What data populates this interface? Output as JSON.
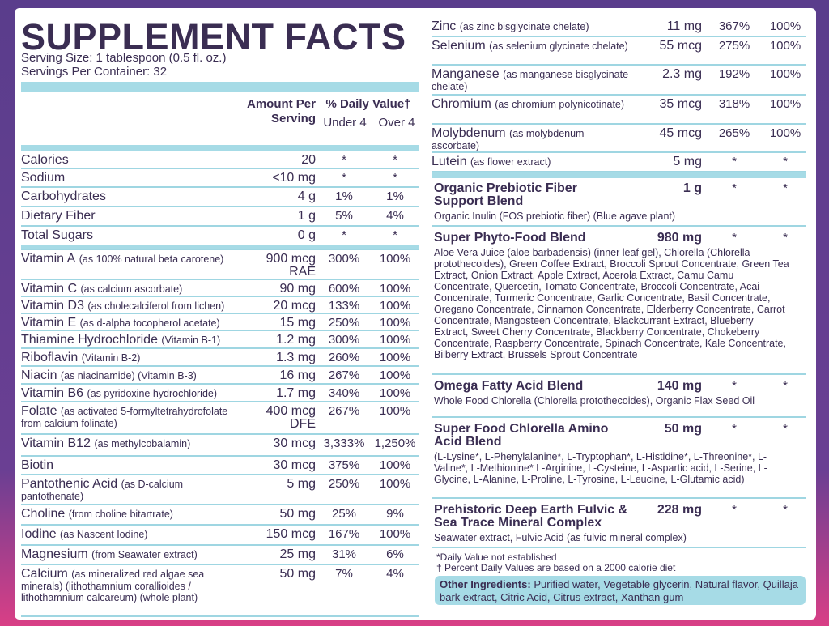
{
  "header": {
    "title": "SUPPLEMENT FACTS",
    "serving_size": "Serving Size: 1 tablespoon (0.5 fl. oz.)",
    "servings_per_container": "Servings Per Container: 32"
  },
  "columns": {
    "amount": "Amount Per Serving",
    "dv": "% Daily Value†",
    "under": "Under 4",
    "over": "Over 4"
  },
  "left_rows": [
    {
      "name": "Calories",
      "amount": "20",
      "under": "*",
      "over": "*"
    },
    {
      "name": "Sodium",
      "amount": "<10 mg",
      "under": "*",
      "over": "*"
    },
    {
      "name": "Carbohydrates",
      "amount": "4 g",
      "under": "1%",
      "over": "1%"
    },
    {
      "name": "Dietary Fiber",
      "amount": "1 g",
      "under": "5%",
      "over": "4%"
    },
    {
      "name": "Total Sugars",
      "amount": "0 g",
      "under": "*",
      "over": "*"
    },
    {
      "name": "Vitamin A",
      "note": "(as 100% natural beta carotene)",
      "amount": "900 mcg RAE",
      "under": "300%",
      "over": "100%"
    },
    {
      "name": "Vitamin C",
      "note": "(as calcium ascorbate)",
      "amount": "90 mg",
      "under": "600%",
      "over": "100%"
    },
    {
      "name": "Vitamin D3",
      "note": "(as cholecalciferol from lichen)",
      "amount": "20 mcg",
      "under": "133%",
      "over": "100%"
    },
    {
      "name": "Vitamin E",
      "note": "(as d-alpha tocopherol acetate)",
      "amount": "15 mg",
      "under": "250%",
      "over": "100%"
    },
    {
      "name": "Thiamine Hydrochloride",
      "note": "(Vitamin B-1)",
      "amount": "1.2 mg",
      "under": "300%",
      "over": "100%"
    },
    {
      "name": "Riboflavin",
      "note": "(Vitamin B-2)",
      "amount": "1.3 mg",
      "under": "260%",
      "over": "100%"
    },
    {
      "name": "Niacin",
      "note": "(as niacinamide) (Vitamin B-3)",
      "amount": "16 mg",
      "under": "267%",
      "over": "100%"
    },
    {
      "name": "Vitamin B6",
      "note": "(as pyridoxine hydrochloride)",
      "amount": "1.7 mg",
      "under": "340%",
      "over": "100%"
    },
    {
      "name": "Folate",
      "note": "(as activated 5-formyltetrahydrofolate from calcium folinate)",
      "amount": "400 mcg DFE",
      "under": "267%",
      "over": "100%"
    },
    {
      "name": "Vitamin B12",
      "note": "(as methylcobalamin)",
      "amount": "30 mcg",
      "under": "3,333%",
      "over": "1,250%"
    },
    {
      "name": "Biotin",
      "amount": "30 mcg",
      "under": "375%",
      "over": "100%"
    },
    {
      "name": "Pantothenic Acid",
      "note": "(as D-calcium pantothenate)",
      "amount": "5 mg",
      "under": "250%",
      "over": "100%"
    },
    {
      "name": "Choline",
      "note": "(from choline bitartrate)",
      "amount": "50 mg",
      "under": "25%",
      "over": "9%"
    },
    {
      "name": "Iodine",
      "note": "(as Nascent Iodine)",
      "amount": "150 mcg",
      "under": "167%",
      "over": "100%"
    },
    {
      "name": "Magnesium",
      "note": "(from Seawater extract)",
      "amount": "25 mg",
      "under": "31%",
      "over": "6%"
    },
    {
      "name": "Calcium",
      "note": "(as mineralized red algae sea minerals) (lithothamnium corallioides / lithothamnium calcareum) (whole plant)",
      "amount": "50 mg",
      "under": "7%",
      "over": "4%"
    }
  ],
  "right_rows": [
    {
      "name": "Zinc",
      "note": "(as zinc bisglycinate chelate)",
      "amount": "11 mg",
      "under": "367%",
      "over": "100%"
    },
    {
      "name": "Selenium",
      "note": "(as selenium glycinate chelate)",
      "amount": "55 mcg",
      "under": "275%",
      "over": "100%"
    },
    {
      "name": "Manganese",
      "note": "(as manganese bisglycinate chelate)",
      "amount": "2.3 mg",
      "under": "192%",
      "over": "100%"
    },
    {
      "name": "Chromium",
      "note": "(as chromium polynicotinate)",
      "amount": "35 mcg",
      "under": "318%",
      "over": "100%"
    },
    {
      "name": "Molybdenum",
      "note": "(as molybdenum ascorbate)",
      "amount": "45 mcg",
      "under": "265%",
      "over": "100%"
    },
    {
      "name": "Lutein",
      "note": "(as flower extract)",
      "amount": "5 mg",
      "under": "*",
      "over": "*"
    }
  ],
  "blends": [
    {
      "name": "Organic Prebiotic Fiber Support Blend",
      "amount": "1 g",
      "under": "*",
      "over": "*",
      "ingredients": "Organic Inulin (FOS prebiotic fiber) (Blue agave plant)"
    },
    {
      "name": "Super Phyto-Food Blend",
      "amount": "980 mg",
      "under": "*",
      "over": "*",
      "ingredients": "Aloe Vera Juice (aloe barbadensis) (inner leaf gel), Chlorella (Chlorella protothecoides), Green Coffee Extract, Broccoli Sprout Concentrate, Green Tea Extract, Onion Extract, Apple Extract, Acerola Extract, Camu Camu Concentrate, Quercetin, Tomato Concentrate, Broccoli Concentrate, Acai Concentrate, Turmeric Concentrate, Garlic Concentrate, Basil Concentrate, Oregano Concentrate, Cinnamon Concentrate, Elderberry Concentrate, Carrot Concentrate, Mangosteen Concentrate, Blackcurrant Extract, Blueberry Extract, Sweet Cherry Concentrate, Blackberry Concentrate, Chokeberry Concentrate, Raspberry Concentrate, Spinach Concentrate, Kale Concentrate, Bilberry Extract, Brussels Sprout Concentrate"
    },
    {
      "name": "Omega Fatty Acid Blend",
      "amount": "140 mg",
      "under": "*",
      "over": "*",
      "ingredients": "Whole Food Chlorella (Chlorella protothecoides), Organic Flax Seed Oil"
    },
    {
      "name": "Super Food Chlorella Amino Acid Blend",
      "amount": "50 mg",
      "under": "*",
      "over": "*",
      "ingredients": "(L-Lysine*, L-Phenylalanine*, L-Tryptophan*, L-Histidine*, L-Threonine*, L-Valine*, L-Methionine* L-Arginine, L-Cysteine, L-Aspartic acid, L-Serine, L-Glycine, L-Alanine, L-Proline, L-Tyrosine, L-Leucine, L-Glutamic acid)"
    },
    {
      "name": "Prehistoric Deep Earth Fulvic & Sea Trace Mineral Complex",
      "amount": "228 mg",
      "under": "*",
      "over": "*",
      "ingredients": "Seawater extract, Fulvic Acid (as fulvic mineral complex)"
    }
  ],
  "footnotes": [
    "*Daily Value not established",
    "† Percent Daily Values are based on a 2000 calorie diet"
  ],
  "other_ingredients": {
    "label": "Other Ingredients:",
    "text": "Purified water, Vegetable glycerin, Natural flavor, Quillaja bark extract, Citric Acid, Citrus extract, Xanthan gum"
  }
}
